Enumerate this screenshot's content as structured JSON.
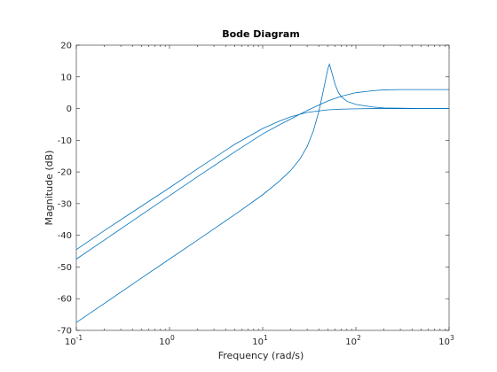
{
  "chart_data": {
    "type": "line",
    "title": "Bode Diagram",
    "xlabel": "Frequency  (rad/s)",
    "ylabel": "Magnitude (dB)",
    "xscale": "log",
    "xlim": [
      0.1,
      1000
    ],
    "ylim": [
      -70,
      20
    ],
    "x_ticks": [
      {
        "value": 0.1,
        "base": "10",
        "exp": "-1"
      },
      {
        "value": 1,
        "base": "10",
        "exp": "0"
      },
      {
        "value": 10,
        "base": "10",
        "exp": "1"
      },
      {
        "value": 100,
        "base": "10",
        "exp": "2"
      },
      {
        "value": 1000,
        "base": "10",
        "exp": "3"
      }
    ],
    "y_ticks": [
      {
        "value": 20,
        "label": "20"
      },
      {
        "value": 10,
        "label": "10"
      },
      {
        "value": 0,
        "label": "0"
      },
      {
        "value": -10,
        "label": "-10"
      },
      {
        "value": -20,
        "label": "-20"
      },
      {
        "value": -30,
        "label": "-30"
      },
      {
        "value": -40,
        "label": "-40"
      },
      {
        "value": -50,
        "label": "-50"
      },
      {
        "value": -60,
        "label": "-60"
      },
      {
        "value": -70,
        "label": "-70"
      }
    ],
    "grid": false,
    "line_color": "#0072BD",
    "series": [
      {
        "x": [
          0.1,
          0.2,
          0.5,
          1,
          2,
          5,
          10,
          15,
          20,
          30,
          50,
          70,
          100,
          150,
          200,
          300,
          500,
          1000
        ],
        "y": [
          -44.5,
          -38.5,
          -30.8,
          -25.0,
          -19.0,
          -11.3,
          -6.3,
          -4.0,
          -2.6,
          -1.2,
          -0.4,
          -0.2,
          -0.1,
          0,
          0,
          0,
          0,
          0
        ]
      },
      {
        "x": [
          0.1,
          0.2,
          0.5,
          1,
          2,
          5,
          10,
          15,
          20,
          30,
          40,
          50,
          70,
          100,
          150,
          200,
          300,
          500,
          1000
        ],
        "y": [
          -47.5,
          -41.5,
          -33.5,
          -27.5,
          -21.5,
          -13.7,
          -8.0,
          -5.2,
          -3.3,
          -0.6,
          1.1,
          2.4,
          3.9,
          5.0,
          5.6,
          5.9,
          6.0,
          6.0,
          6.0
        ]
      },
      {
        "x": [
          0.1,
          0.2,
          0.5,
          1,
          2,
          5,
          10,
          15,
          20,
          25,
          30,
          35,
          40,
          45,
          50,
          52,
          55,
          60,
          65,
          70,
          80,
          100,
          150,
          200,
          300,
          500,
          1000
        ],
        "y": [
          -67.5,
          -61.5,
          -53.5,
          -47.5,
          -41.5,
          -33.5,
          -27.2,
          -23.0,
          -19.5,
          -16.0,
          -12.0,
          -7.0,
          -1.0,
          6.0,
          12.5,
          14.0,
          11.5,
          7.5,
          5.0,
          3.7,
          2.3,
          1.3,
          0.5,
          0.2,
          0.1,
          0,
          0
        ]
      }
    ]
  }
}
